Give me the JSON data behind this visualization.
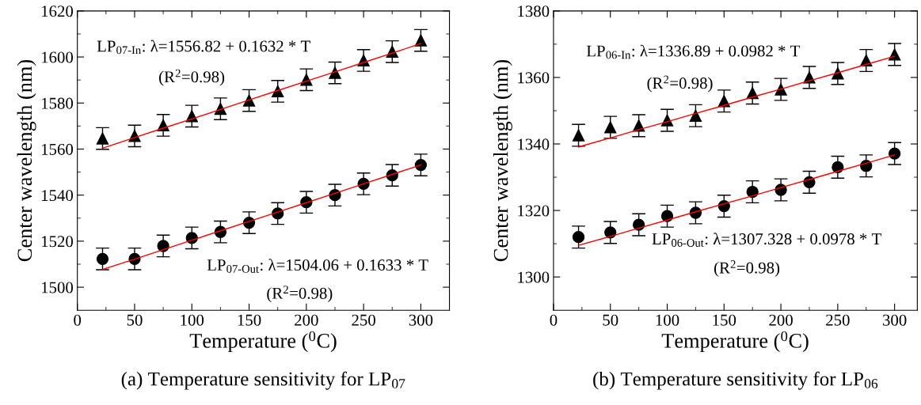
{
  "chart_data": [
    {
      "type": "scatter",
      "xlabel": "Temperature ($^{0}$C)",
      "ylabel": "Center wavelength (nm)",
      "xlim": [
        0,
        325
      ],
      "xticks": [
        0,
        50,
        100,
        150,
        200,
        250,
        300
      ],
      "ylim": [
        1490,
        1620
      ],
      "yticks": [
        1500,
        1520,
        1540,
        1560,
        1580,
        1600,
        1620
      ],
      "grid": false,
      "legend": false,
      "x": [
        22,
        50,
        75,
        100,
        125,
        150,
        175,
        200,
        225,
        250,
        275,
        300
      ],
      "series": [
        {
          "color": "#000000",
          "marker": "triangle",
          "values": [
            1564.6,
            1565.7,
            1570.3,
            1574.3,
            1577.5,
            1581.1,
            1585.1,
            1590.1,
            1593.1,
            1598.5,
            1602.3,
            1607.2
          ],
          "errors": [
            4.7,
            4.7,
            4.7,
            4.7,
            4.7,
            4.7,
            4.7,
            4.7,
            4.7,
            4.7,
            4.7,
            4.7
          ]
        },
        {
          "color": "#000000",
          "marker": "circle",
          "values": [
            1512.3,
            1512.3,
            1517.9,
            1521.4,
            1524.0,
            1528.0,
            1532.0,
            1536.9,
            1540.0,
            1544.9,
            1548.6,
            1553.1
          ],
          "errors": [
            4.7,
            4.7,
            4.7,
            4.7,
            4.7,
            4.7,
            4.7,
            4.7,
            4.7,
            4.7,
            4.7,
            4.7
          ]
        },
        {
          "type": "line",
          "color": "#ff0000",
          "values": [
            1560.4,
            1565.0,
            1569.1,
            1573.1,
            1577.2,
            1581.3,
            1585.4,
            1589.5,
            1593.5,
            1597.6,
            1601.7,
            1605.8
          ]
        },
        {
          "type": "line",
          "color": "#ff0000",
          "values": [
            1507.7,
            1512.2,
            1516.3,
            1520.4,
            1524.5,
            1528.6,
            1532.6,
            1536.7,
            1540.8,
            1544.9,
            1549.0,
            1553.1
          ]
        }
      ],
      "annotations": [
        "LP$_{07-In}$: λ=1556.82 + 0.1632 * T",
        "(R$^{2}$=0.98)",
        "LP$_{07-Out}$: λ=1504.06 + 0.1633 * T",
        "(R$^{2}$=0.98)",
        "(a) Temperature sensitivity for LP$_{07}$"
      ]
    },
    {
      "type": "scatter",
      "xlabel": "Temperature ($^{0}$C)",
      "ylabel": "Center wavelength (nm)",
      "xlim": [
        0,
        320
      ],
      "xticks": [
        0,
        50,
        100,
        150,
        200,
        250,
        300
      ],
      "ylim": [
        1290,
        1380
      ],
      "yticks": [
        1300,
        1320,
        1340,
        1360,
        1380
      ],
      "grid": false,
      "legend": false,
      "x": [
        22,
        50,
        75,
        100,
        125,
        150,
        175,
        200,
        225,
        250,
        275,
        300
      ],
      "series": [
        {
          "color": "#000000",
          "marker": "triangle",
          "values": [
            1342.6,
            1345.0,
            1345.5,
            1347.1,
            1348.5,
            1352.9,
            1355.3,
            1356.4,
            1360.0,
            1361.2,
            1365.1,
            1366.9
          ],
          "errors": [
            3.3,
            3.3,
            3.3,
            3.3,
            3.3,
            3.3,
            3.3,
            3.3,
            3.3,
            3.3,
            3.3,
            3.3
          ]
        },
        {
          "color": "#000000",
          "marker": "circle",
          "values": [
            1312.0,
            1313.4,
            1315.7,
            1318.3,
            1319.3,
            1321.3,
            1325.6,
            1326.2,
            1328.5,
            1333.0,
            1333.4,
            1337.1
          ],
          "errors": [
            3.3,
            3.3,
            3.3,
            3.3,
            3.3,
            3.3,
            3.3,
            3.3,
            3.3,
            3.3,
            3.3,
            3.3
          ]
        },
        {
          "type": "line",
          "color": "#ff0000",
          "values": [
            1339.1,
            1341.8,
            1344.3,
            1346.7,
            1349.2,
            1351.6,
            1354.1,
            1356.5,
            1359.0,
            1361.4,
            1363.9,
            1366.4
          ]
        },
        {
          "type": "line",
          "color": "#ff0000",
          "values": [
            1309.5,
            1312.2,
            1314.7,
            1317.1,
            1319.6,
            1322.0,
            1324.4,
            1326.9,
            1329.3,
            1331.8,
            1334.2,
            1336.7
          ]
        }
      ],
      "annotations": [
        "LP$_{06-In}$: λ=1336.89 + 0.0982 * T",
        "(R$^{2}$=0.98)",
        "LP$_{06-Out}$: λ=1307.328 + 0.0978 * T",
        "(R$^{2}$=0.98)",
        "(b) Temperature sensitivity for LP$_{06}$"
      ]
    }
  ]
}
